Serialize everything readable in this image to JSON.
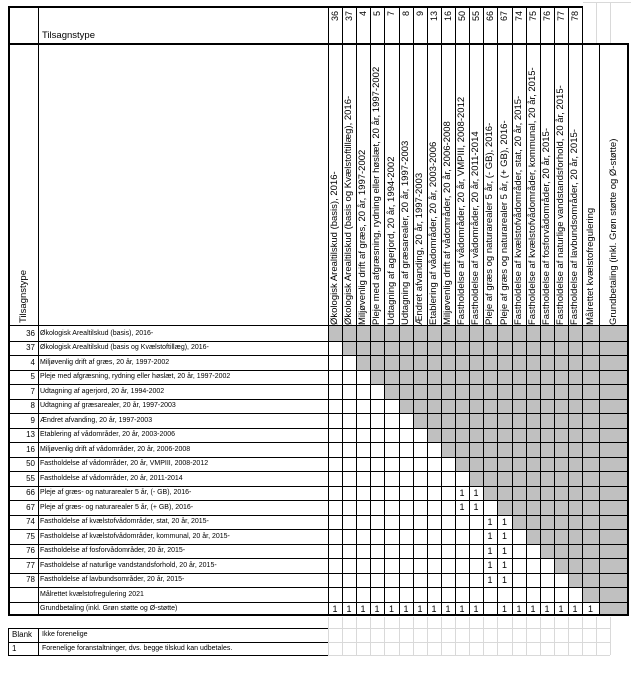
{
  "sheet": {
    "column_axis_title": "Tilsagnstype",
    "row_axis_title": "Tilsagnstype"
  },
  "schemes": [
    {
      "id": "36",
      "code": "36",
      "row_label": "Økologisk Arealtilskud (basis), 2016-",
      "col_label": "Økologisk Arealtilskud (basis), 2016-"
    },
    {
      "id": "37",
      "code": "37",
      "row_label": "Økologisk Arealtilskud (basis og Kvælstoftillæg), 2016-",
      "col_label": "Økologisk Arealtilskud (basis og Kvælstoftillæg), 2016-"
    },
    {
      "id": "4",
      "code": "4",
      "row_label": "Miljøvenlig drift af græs, 20 år, 1997-2002",
      "col_label": "Miljøvenlig drift af græs, 20 år, 1997-2002"
    },
    {
      "id": "5",
      "code": "5",
      "row_label": "Pleje med afgræsning, rydning eller høslæt, 20 år, 1997-2002",
      "col_label": "Pleje med afgræsning, rydning eller høslæt, 20 år, 1997-2002"
    },
    {
      "id": "7",
      "code": "7",
      "row_label": "Udtagning af agerjord, 20 år, 1994-2002",
      "col_label": "Udtagning af agerjord, 20 år, 1994-2002"
    },
    {
      "id": "8",
      "code": "8",
      "row_label": "Udtagning af græsarealer, 20 år, 1997-2003",
      "col_label": "Udtagning af græsarealer, 20 år, 1997-2003"
    },
    {
      "id": "9",
      "code": "9",
      "row_label": "Ændret afvanding, 20 år, 1997-2003",
      "col_label": "Ændret afvanding, 20 år, 1997-2003"
    },
    {
      "id": "13",
      "code": "13",
      "row_label": "Etablering af vådområder, 20 år, 2003-2006",
      "col_label": "Etablering af vådområder, 20 år, 2003-2006"
    },
    {
      "id": "16",
      "code": "16",
      "row_label": "Miljøvenlig drift af vådområder, 20 år, 2006-2008",
      "col_label": "Miljøvenlig drift af vådområder, 20 år, 2006-2008"
    },
    {
      "id": "50",
      "code": "50",
      "row_label": "Fastholdelse af vådområder, 20 år, VMPIII, 2008-2012",
      "col_label": "Fastholdelse af vådområder, 20 år, VMPIII, 2008-2012"
    },
    {
      "id": "55",
      "code": "55",
      "row_label": "Fastholdelse af vådområder, 20 år, 2011-2014",
      "col_label": "Fastholdelse af vådområder, 20 år, 2011-2014"
    },
    {
      "id": "66",
      "code": "66",
      "row_label": "Pleje af græs- og naturarealer 5 år, (- GB), 2016-",
      "col_label": "Pleje af græs og naturarealer 5 år, (- GB), 2016-"
    },
    {
      "id": "67",
      "code": "67",
      "row_label": "Pleje af græs- og naturarealer 5 år, (+ GB), 2016-",
      "col_label": "Pleje af græs og naturarealer 5 år, (+ GB), 2016-"
    },
    {
      "id": "74",
      "code": "74",
      "row_label": "Fastholdelse af kvælstofvådområder, stat, 20 år, 2015-",
      "col_label": "Fastholdelse af kvælstofvådområder, stat, 20 år, 2015-"
    },
    {
      "id": "75",
      "code": "75",
      "row_label": "Fastholdelse af kvælstofvådområder, kommunal, 20 år, 2015-",
      "col_label": "Fastholdelse af kvælstofvådområder, kommunal, 20 år, 2015-"
    },
    {
      "id": "76",
      "code": "76",
      "row_label": "Fastholdelse af fosforvådområder, 20 år, 2015-",
      "col_label": "Fastholdelse af fosforvådområder, 20 år, 2015-"
    },
    {
      "id": "77",
      "code": "77",
      "row_label": "Fastholdelse af naturlige vandstandsforhold, 20 år, 2015-",
      "col_label": "Fastholdelse af naturlige vandstandsforhold, 20 år, 2015-"
    },
    {
      "id": "78",
      "code": "78",
      "row_label": "Fastholdelse af lavbundsområder, 20 år, 2015-",
      "col_label": "Fastholdelse af lavbundsområder, 20 år, 2015-"
    },
    {
      "id": "maalrettet",
      "code": "",
      "row_label": "Målrettet kvælstofregulering 2021",
      "col_label": "Målrettet kvælstofregulering"
    },
    {
      "id": "grundbetaling",
      "code": "",
      "row_label": "Grundbetaling (inkl. Grøn støtte og Ø-støtte)",
      "col_label": "Grundbetaling (inkl. Grøn støtte og Ø-støtte)"
    }
  ],
  "matrix": {
    "shading_rule": "cells on or above the diagonal (column index >= row index) are shaded grey / not applicable",
    "one_symbol": "1",
    "compatible_ones": {
      "66": [
        "50",
        "55"
      ],
      "67": [
        "50",
        "55"
      ],
      "74": [
        "66",
        "67"
      ],
      "75": [
        "66",
        "67"
      ],
      "76": [
        "66",
        "67"
      ],
      "77": [
        "66",
        "67"
      ],
      "78": [
        "66",
        "67"
      ],
      "grundbetaling": [
        "36",
        "37",
        "4",
        "5",
        "7",
        "8",
        "9",
        "13",
        "16",
        "50",
        "55",
        "67",
        "74",
        "75",
        "76",
        "77",
        "78",
        "maalrettet"
      ]
    }
  },
  "legend": [
    {
      "key": "Blank",
      "text": "Ikke forenelige"
    },
    {
      "key": "1",
      "text": "Forenelige foranstaltninger, dvs. begge tilskud kan udbetales."
    }
  ],
  "colors": {
    "shaded_cell": "#c0c0c0",
    "table_border": "#000000",
    "faint_grid": "#d9d9d9",
    "text": "#000000"
  }
}
